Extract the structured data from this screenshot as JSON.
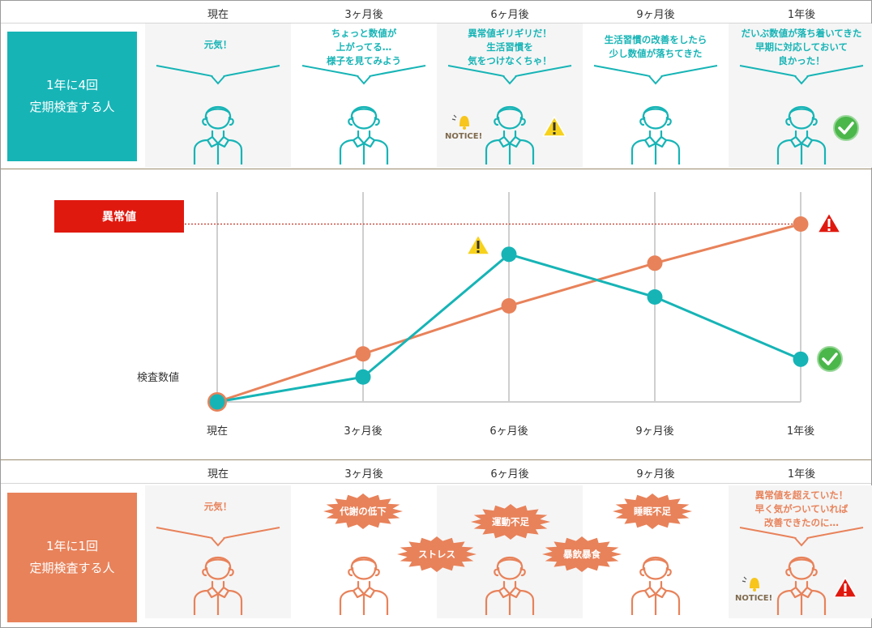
{
  "columns": [
    "現在",
    "3ヶ月後",
    "6ヶ月後",
    "9ヶ月後",
    "1年後"
  ],
  "top_group": {
    "label": "1年に4回\n定期検査する人",
    "color": "#17b4b6",
    "messages": [
      "元気！",
      "ちょっと数値が\n上がってる…\n様子を見てみよう",
      "異常値ギリギリだ！\n生活習慣を\n気をつけなくちゃ！",
      "生活習慣の改善をしたら\n少し数値が落ちてきた",
      "だいぶ数値が落ち着いてきた\n早期に対応しておいて\n良かった！"
    ],
    "notice": "NOTICE!"
  },
  "bottom_group": {
    "label": "1年に1回\n定期検査する人",
    "color": "#e8825a",
    "messages": [
      "元気！",
      "",
      "",
      "",
      "異常値を超えていた！\n早く気がついていれば\n改善できたのに…"
    ],
    "bursts": [
      "代謝の低下",
      "ストレス",
      "運動不足",
      "暴飲暴食",
      "睡眠不足"
    ],
    "notice": "NOTICE!"
  },
  "chart_data": {
    "type": "line",
    "categories": [
      "現在",
      "3ヶ月後",
      "6ヶ月後",
      "9ヶ月後",
      "1年後"
    ],
    "ylabel": "検査数値",
    "threshold_label": "異常値",
    "threshold": 100,
    "ylim": [
      0,
      118
    ],
    "grid": true,
    "series": [
      {
        "color": "#17b4b6",
        "values": [
          0,
          14,
          83,
          59,
          24
        ]
      },
      {
        "color": "#e8825a",
        "values": [
          0,
          27,
          54,
          78,
          100
        ]
      }
    ]
  },
  "colors": {
    "alert_red": "#e0190f",
    "warning_yellow": "#f7d21c",
    "ok_green": "#4bb74b",
    "brown_line": "#9b8a6e"
  }
}
